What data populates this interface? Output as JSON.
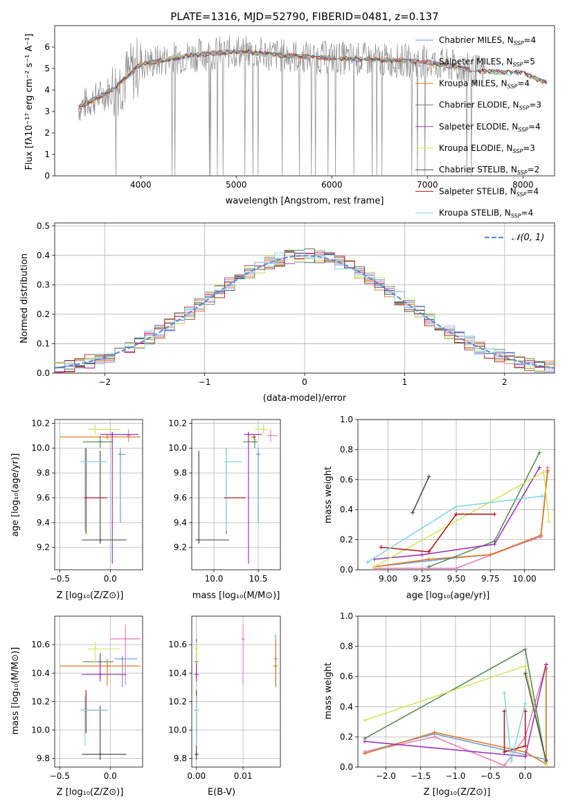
{
  "colors": {
    "chabrier_miles": "#6a9fd8",
    "salpeter_miles": "#e87db4",
    "kroupa_miles": "#e07b20",
    "chabrier_elodie": "#5a8a5a",
    "salpeter_elodie": "#9b35b5",
    "kroupa_elodie": "#cde85a",
    "chabrier_stelib": "#505050",
    "salpeter_stelib": "#b01818",
    "kroupa_stelib": "#80d8e0",
    "gauss": "#5b8fd6",
    "grid": "#b0b0b0"
  },
  "chart_data": [
    {
      "type": "line",
      "title": "PLATE=1316, MJD=52790, FIBERID=0481, z=0.137",
      "xlabel": "wavelength [Angstrom, rest frame]",
      "ylabel": "Flux [fλ10⁻¹⁷ erg cm⁻² s⁻¹ A⁻¹]",
      "xlim": [
        3100,
        8330
      ],
      "ylim": [
        0,
        7
      ],
      "xticks": [
        "4000",
        "5000",
        "6000",
        "7000",
        "8000"
      ],
      "yticks": [
        "0",
        "1",
        "2",
        "3",
        "4",
        "5",
        "6"
      ],
      "legend_position": "top-right",
      "legend": [
        {
          "key": "chabrier_miles",
          "base": "Chabrier MILES, N",
          "sub": "SSP",
          "n": "=4"
        },
        {
          "key": "salpeter_miles",
          "base": "Salpeter MILES, N",
          "sub": "SSP",
          "n": "=5"
        },
        {
          "key": "kroupa_miles",
          "base": "Kroupa MILES, N",
          "sub": "SSP",
          "n": "=4"
        },
        {
          "key": "chabrier_elodie",
          "base": "Chabrier ELODIE, N",
          "sub": "SSP",
          "n": "=3"
        },
        {
          "key": "salpeter_elodie",
          "base": "Salpeter ELODIE, N",
          "sub": "SSP",
          "n": "=4"
        },
        {
          "key": "kroupa_elodie",
          "base": "Kroupa ELODIE, N",
          "sub": "SSP",
          "n": "=3"
        },
        {
          "key": "chabrier_stelib",
          "base": "Chabrier STELIB, N",
          "sub": "SSP",
          "n": "=2"
        },
        {
          "key": "salpeter_stelib",
          "base": "Salpeter STELIB, N",
          "sub": "SSP",
          "n": "=4"
        },
        {
          "key": "kroupa_stelib",
          "base": "Kroupa STELIB, N",
          "sub": "SSP",
          "n": "=4"
        }
      ],
      "continuum": {
        "x": [
          3350,
          3700,
          4000,
          4500,
          5000,
          5500,
          6000,
          6500,
          7000,
          7500,
          8000,
          8200
        ],
        "y": [
          3.2,
          4.0,
          5.2,
          5.6,
          5.8,
          5.6,
          5.5,
          5.4,
          5.3,
          4.9,
          4.8,
          4.4
        ]
      }
    },
    {
      "type": "line",
      "xlabel": "(data-model)/error",
      "ylabel": "Normed distribution",
      "xlim": [
        -2.5,
        2.5
      ],
      "ylim": [
        0,
        0.51
      ],
      "xticks": [
        "−2",
        "−1",
        "0",
        "1",
        "2"
      ],
      "yticks": [
        "0.0",
        "0.1",
        "0.2",
        "0.3",
        "0.4",
        "0.5"
      ],
      "legend_position": "top-right",
      "legend_label": "𝒩(0, 1)",
      "bins": [
        -2.5,
        -2.4,
        -2.3,
        -2.2,
        -2.1,
        -2.0,
        -1.9,
        -1.8,
        -1.7,
        -1.6,
        -1.5,
        -1.4,
        -1.3,
        -1.2,
        -1.1,
        -1.0,
        -0.9,
        -0.8,
        -0.7,
        -0.6,
        -0.5,
        -0.4,
        -0.3,
        -0.2,
        -0.1,
        0.0,
        0.1,
        0.2,
        0.3,
        0.4,
        0.5,
        0.6,
        0.7,
        0.8,
        0.9,
        1.0,
        1.1,
        1.2,
        1.3,
        1.4,
        1.5,
        1.6,
        1.7,
        1.8,
        1.9,
        2.0,
        2.1,
        2.2,
        2.3,
        2.4,
        2.5
      ],
      "gaussian": {
        "mu": 0,
        "sigma": 1
      }
    },
    {
      "type": "scatter",
      "xlabel": "Z [log₁₀(Z/Z⊙)]",
      "ylabel": "age  [log₁₀(age/yr)]",
      "xlim": [
        -0.55,
        0.32
      ],
      "ylim": [
        9.02,
        10.23
      ],
      "xticks": [
        "−0.5",
        "0.0"
      ],
      "yticks": [
        "9.2",
        "9.4",
        "9.6",
        "9.8",
        "10.0",
        "10.2"
      ],
      "points": [
        {
          "key": "chabrier_miles",
          "x": 0.1,
          "y": 9.95,
          "xerr": [
            0.02,
            0.05
          ],
          "yerr": [
            0.55,
            0.05
          ]
        },
        {
          "key": "salpeter_miles",
          "x": 0.18,
          "y": 10.1,
          "xerr": [
            0.02,
            0.02
          ],
          "yerr": [
            0.05,
            0.05
          ]
        },
        {
          "key": "kroupa_miles",
          "x": -0.03,
          "y": 10.09,
          "xerr": [
            0.47,
            0.33
          ],
          "yerr": [
            0.02,
            0.02
          ]
        },
        {
          "key": "chabrier_elodie",
          "x": -0.1,
          "y": 10.05,
          "xerr": [
            0.17,
            0.13
          ],
          "yerr": [
            0.05,
            0.05
          ]
        },
        {
          "key": "salpeter_elodie",
          "x": 0.02,
          "y": 10.11,
          "xerr": [
            0.12,
            0.26
          ],
          "yerr": [
            1.04,
            0.02
          ]
        },
        {
          "key": "kroupa_elodie",
          "x": -0.15,
          "y": 10.15,
          "xerr": [
            0.07,
            0.25
          ],
          "yerr": [
            0.04,
            0.04
          ]
        },
        {
          "key": "chabrier_stelib",
          "x": -0.1,
          "y": 9.26,
          "xerr": [
            0.18,
            0.26
          ],
          "yerr": [
            0.03,
            0.72
          ]
        },
        {
          "key": "salpeter_stelib",
          "x": -0.24,
          "y": 9.6,
          "xerr": [
            0.02,
            0.21
          ],
          "yerr": [
            0.29,
            0.4
          ]
        },
        {
          "key": "kroupa_stelib",
          "x": -0.25,
          "y": 9.89,
          "xerr": [
            0.05,
            0.22
          ],
          "yerr": [
            0.56,
            0.11
          ]
        }
      ]
    },
    {
      "type": "scatter",
      "xlabel": "mass [log₁₀(M/M⊙)]",
      "xlim": [
        9.75,
        10.75
      ],
      "ylim": [
        9.02,
        10.23
      ],
      "xticks": [
        "10.0",
        "10.5"
      ],
      "yticks": [
        "9.2",
        "9.4",
        "9.6",
        "9.8",
        "10.0",
        "10.2"
      ],
      "points": [
        {
          "key": "chabrier_miles",
          "x": 10.5,
          "y": 9.95,
          "xerr": [
            0.02,
            0.02
          ],
          "yerr": [
            0.55,
            0.05
          ]
        },
        {
          "key": "salpeter_miles",
          "x": 10.64,
          "y": 10.1,
          "xerr": [
            0.04,
            0.08
          ],
          "yerr": [
            0.05,
            0.05
          ]
        },
        {
          "key": "kroupa_miles",
          "x": 10.45,
          "y": 10.09,
          "xerr": [
            0.03,
            0.02
          ],
          "yerr": [
            0.02,
            0.02
          ]
        },
        {
          "key": "chabrier_elodie",
          "x": 10.46,
          "y": 10.05,
          "xerr": [
            0.13,
            0.03
          ],
          "yerr": [
            0.05,
            0.05
          ]
        },
        {
          "key": "salpeter_elodie",
          "x": 10.39,
          "y": 10.11,
          "xerr": [
            0.05,
            0.15
          ],
          "yerr": [
            1.04,
            0.02
          ]
        },
        {
          "key": "kroupa_elodie",
          "x": 10.56,
          "y": 10.15,
          "xerr": [
            0.1,
            0.05
          ],
          "yerr": [
            0.04,
            0.04
          ]
        },
        {
          "key": "chabrier_stelib",
          "x": 9.83,
          "y": 9.26,
          "xerr": [
            0.04,
            0.34
          ],
          "yerr": [
            0.03,
            0.72
          ]
        },
        {
          "key": "salpeter_stelib",
          "x": 10.14,
          "y": 9.6,
          "xerr": [
            0.02,
            0.22
          ],
          "yerr": [
            0.29,
            0.4
          ]
        },
        {
          "key": "kroupa_stelib",
          "x": 10.14,
          "y": 9.89,
          "xerr": [
            0.01,
            0.17
          ],
          "yerr": [
            0.56,
            0.11
          ]
        }
      ]
    },
    {
      "type": "line",
      "xlabel": "age  [log₁₀(age/yr)]",
      "ylabel": "mass weight",
      "xlim": [
        8.78,
        10.22
      ],
      "ylim": [
        0,
        1.0
      ],
      "xticks": [
        "9.00",
        "9.25",
        "9.50",
        "9.75",
        "10.00"
      ],
      "yticks": [
        "0.0",
        "0.2",
        "0.4",
        "0.6",
        "0.8",
        "1.0"
      ],
      "series": [
        {
          "key": "chabrier_miles",
          "x": [
            8.9,
            9.5,
            9.75,
            10.12,
            10.17
          ],
          "y": [
            0.02,
            0.08,
            0.1,
            0.22,
            0.65
          ]
        },
        {
          "key": "salpeter_miles",
          "x": [
            8.9,
            9.5,
            10.05,
            10.12,
            10.17
          ],
          "y": [
            0.01,
            0.01,
            0.2,
            0.22,
            0.68
          ]
        },
        {
          "key": "kroupa_miles",
          "x": [
            8.9,
            9.3,
            9.75,
            10.12,
            10.17
          ],
          "y": [
            0.02,
            0.07,
            0.1,
            0.23,
            0.66
          ]
        },
        {
          "key": "chabrier_elodie",
          "x": [
            9.3,
            9.78,
            10.11
          ],
          "y": [
            0.02,
            0.19,
            0.78
          ]
        },
        {
          "key": "salpeter_elodie",
          "x": [
            8.9,
            9.25,
            9.78,
            10.11
          ],
          "y": [
            0.07,
            0.1,
            0.17,
            0.68
          ]
        },
        {
          "key": "kroupa_elodie",
          "x": [
            8.9,
            10.14,
            10.18
          ],
          "y": [
            0.02,
            0.65,
            0.32
          ]
        },
        {
          "key": "chabrier_stelib",
          "x": [
            9.18,
            9.3
          ],
          "y": [
            0.38,
            0.62
          ]
        },
        {
          "key": "salpeter_stelib",
          "x": [
            8.95,
            9.3,
            9.5,
            9.78
          ],
          "y": [
            0.15,
            0.12,
            0.37,
            0.37
          ]
        },
        {
          "key": "kroupa_stelib",
          "x": [
            8.85,
            9.5,
            10.13
          ],
          "y": [
            0.05,
            0.42,
            0.49
          ]
        }
      ]
    },
    {
      "type": "scatter",
      "xlabel": "Z [log₁₀(Z/Z⊙)]",
      "ylabel": "mass [log₁₀(M/M⊙)]",
      "xlim": [
        -0.55,
        0.32
      ],
      "ylim": [
        9.74,
        10.8
      ],
      "xticks": [
        "−0.5",
        "0.0"
      ],
      "yticks": [
        "9.8",
        "10.0",
        "10.2",
        "10.4",
        "10.6"
      ],
      "points": [
        {
          "key": "chabrier_miles",
          "x": 0.12,
          "y": 10.5,
          "xerr": [
            0.08,
            0.15
          ],
          "yerr": [
            0.2,
            0.02
          ]
        },
        {
          "key": "salpeter_miles",
          "x": 0.15,
          "y": 10.64,
          "xerr": [
            0.15,
            0.15
          ],
          "yerr": [
            0.32,
            0.1
          ]
        },
        {
          "key": "kroupa_miles",
          "x": -0.03,
          "y": 10.45,
          "xerr": [
            0.47,
            0.33
          ],
          "yerr": [
            0.14,
            0.05
          ]
        },
        {
          "key": "chabrier_elodie",
          "x": -0.1,
          "y": 10.48,
          "xerr": [
            0.17,
            0.13
          ],
          "yerr": [
            0.12,
            0.05
          ]
        },
        {
          "key": "salpeter_elodie",
          "x": -0.1,
          "y": 10.39,
          "xerr": [
            0.18,
            0.26
          ],
          "yerr": [
            0.05,
            0.15
          ]
        },
        {
          "key": "kroupa_elodie",
          "x": -0.15,
          "y": 10.57,
          "xerr": [
            0.07,
            0.25
          ],
          "yerr": [
            0.1,
            0.05
          ]
        },
        {
          "key": "chabrier_stelib",
          "x": -0.1,
          "y": 9.83,
          "xerr": [
            0.18,
            0.26
          ],
          "yerr": [
            0.04,
            0.34
          ]
        },
        {
          "key": "salpeter_stelib",
          "x": -0.24,
          "y": 10.14,
          "xerr": [
            0.02,
            0.21
          ],
          "yerr": [
            0.16,
            0.14
          ]
        },
        {
          "key": "kroupa_stelib",
          "x": -0.25,
          "y": 10.14,
          "xerr": [
            0.05,
            0.22
          ],
          "yerr": [
            0.25,
            0.1
          ]
        }
      ]
    },
    {
      "type": "scatter",
      "xlabel": "E(B-V)",
      "xlim": [
        -0.001,
        0.018
      ],
      "ylim": [
        9.74,
        10.8
      ],
      "xticks": [
        "0.00",
        "0.01"
      ],
      "yticks": [
        "9.8",
        "10.0",
        "10.2",
        "10.4",
        "10.6"
      ],
      "points": [
        {
          "key": "chabrier_miles",
          "x": 0.017,
          "y": 10.5,
          "yerr": [
            0.2,
            0.17
          ]
        },
        {
          "key": "salpeter_miles",
          "x": 0.01,
          "y": 10.64,
          "yerr": [
            0.32,
            0.1
          ]
        },
        {
          "key": "kroupa_miles",
          "x": 0.017,
          "y": 10.45,
          "yerr": [
            0.14,
            0.18
          ]
        },
        {
          "key": "chabrier_elodie",
          "x": 0.0,
          "y": 10.48,
          "yerr": [
            0.12,
            0.13
          ]
        },
        {
          "key": "salpeter_elodie",
          "x": 0.0,
          "y": 10.39,
          "yerr": [
            0.05,
            0.25
          ]
        },
        {
          "key": "kroupa_elodie",
          "x": 0.0,
          "y": 10.57,
          "yerr": [
            0.1,
            0.05
          ]
        },
        {
          "key": "chabrier_stelib",
          "x": 0.0,
          "y": 9.83,
          "yerr": [
            0.04,
            0.34
          ]
        },
        {
          "key": "salpeter_stelib",
          "x": 0.0,
          "y": 10.14,
          "yerr": [
            0.16,
            0.14
          ]
        },
        {
          "key": "kroupa_stelib",
          "x": 0.0,
          "y": 10.14,
          "yerr": [
            0.25,
            0.1
          ]
        }
      ]
    },
    {
      "type": "line",
      "xlabel": "Z [log₁₀(Z/Z⊙)]",
      "ylabel": "mass weight",
      "xlim": [
        -2.4,
        0.42
      ],
      "ylim": [
        0,
        1.0
      ],
      "xticks": [
        "−2.0",
        "−1.5",
        "−1.0",
        "−0.5",
        "0.0"
      ],
      "yticks": [
        "0.0",
        "0.2",
        "0.4",
        "0.6",
        "0.8",
        "1.0"
      ],
      "series": [
        {
          "key": "chabrier_miles",
          "x": [
            -2.3,
            -1.3,
            0.3,
            0.3
          ],
          "y": [
            0.1,
            0.22,
            0.05,
            0.65
          ]
        },
        {
          "key": "salpeter_miles",
          "x": [
            -2.3,
            -1.3,
            -0.3,
            0.0,
            0.3
          ],
          "y": [
            0.1,
            0.2,
            0.01,
            0.2,
            0.68
          ]
        },
        {
          "key": "kroupa_miles",
          "x": [
            -2.3,
            -1.3,
            0.0,
            0.3,
            0.3
          ],
          "y": [
            0.09,
            0.23,
            0.1,
            0.02,
            0.66
          ]
        },
        {
          "key": "chabrier_elodie",
          "x": [
            -2.3,
            0.0,
            0.3
          ],
          "y": [
            0.19,
            0.78,
            0.02
          ]
        },
        {
          "key": "salpeter_elodie",
          "x": [
            -2.3,
            0.0,
            0.3
          ],
          "y": [
            0.17,
            0.07,
            0.68
          ]
        },
        {
          "key": "kroupa_elodie",
          "x": [
            -2.3,
            0.0,
            0.3
          ],
          "y": [
            0.31,
            0.67,
            0.02
          ]
        },
        {
          "key": "chabrier_stelib",
          "x": [
            0.0,
            0.3
          ],
          "y": [
            0.62,
            0.04
          ]
        },
        {
          "key": "salpeter_stelib",
          "x": [
            -0.3,
            -0.3,
            0.0,
            0.0
          ],
          "y": [
            0.37,
            0.1,
            0.14,
            0.37
          ]
        },
        {
          "key": "kroupa_stelib",
          "x": [
            -0.3,
            -0.2,
            0.0
          ],
          "y": [
            0.49,
            0.04,
            0.42
          ]
        }
      ]
    }
  ]
}
